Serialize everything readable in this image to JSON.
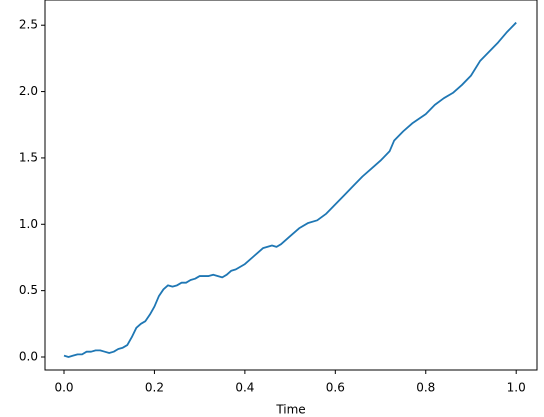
{
  "chart_data": {
    "type": "line",
    "xlabel": "Time",
    "x": [
      0,
      0.01,
      0.02,
      0.03,
      0.04,
      0.05,
      0.06,
      0.07,
      0.08,
      0.09,
      0.1,
      0.11,
      0.12,
      0.13,
      0.14,
      0.15,
      0.16,
      0.17,
      0.18,
      0.19,
      0.2,
      0.21,
      0.22,
      0.23,
      0.24,
      0.25,
      0.26,
      0.27,
      0.28,
      0.29,
      0.3,
      0.32,
      0.33,
      0.35,
      0.36,
      0.37,
      0.38,
      0.4,
      0.42,
      0.44,
      0.46,
      0.47,
      0.48,
      0.5,
      0.52,
      0.54,
      0.56,
      0.58,
      0.6,
      0.62,
      0.64,
      0.66,
      0.68,
      0.7,
      0.72,
      0.73,
      0.75,
      0.77,
      0.8,
      0.82,
      0.84,
      0.86,
      0.88,
      0.9,
      0.92,
      0.94,
      0.96,
      0.98,
      1.0
    ],
    "series": [
      {
        "color": "#1f77b4",
        "values": [
          0.01,
          0.0,
          0.01,
          0.02,
          0.02,
          0.04,
          0.04,
          0.05,
          0.05,
          0.04,
          0.03,
          0.04,
          0.06,
          0.07,
          0.09,
          0.15,
          0.22,
          0.25,
          0.27,
          0.32,
          0.38,
          0.46,
          0.51,
          0.54,
          0.53,
          0.54,
          0.56,
          0.56,
          0.58,
          0.59,
          0.61,
          0.61,
          0.62,
          0.6,
          0.62,
          0.65,
          0.66,
          0.7,
          0.76,
          0.82,
          0.84,
          0.83,
          0.85,
          0.91,
          0.97,
          1.01,
          1.03,
          1.08,
          1.15,
          1.22,
          1.29,
          1.36,
          1.42,
          1.48,
          1.55,
          1.63,
          1.7,
          1.76,
          1.83,
          1.9,
          1.95,
          1.99,
          2.05,
          2.12,
          2.23,
          2.3,
          2.37,
          2.45,
          2.52
        ]
      }
    ],
    "xlim": [
      -0.042,
      1.046
    ],
    "ylim": [
      -0.098,
      2.69
    ],
    "xticks": [
      {
        "value": 0,
        "label": "0.0"
      },
      {
        "value": 0.2,
        "label": "0.2"
      },
      {
        "value": 0.4,
        "label": "0.4"
      },
      {
        "value": 0.6,
        "label": "0.6"
      },
      {
        "value": 0.8,
        "label": "0.8"
      },
      {
        "value": 1,
        "label": "1.0"
      }
    ],
    "yticks": [
      {
        "value": 0,
        "label": "0.0"
      },
      {
        "value": 0.5,
        "label": "0.5"
      },
      {
        "value": 1,
        "label": "1.0"
      },
      {
        "value": 1.5,
        "label": "1.5"
      },
      {
        "value": 2,
        "label": "2.0"
      },
      {
        "value": 2.5,
        "label": "2.5"
      }
    ]
  }
}
